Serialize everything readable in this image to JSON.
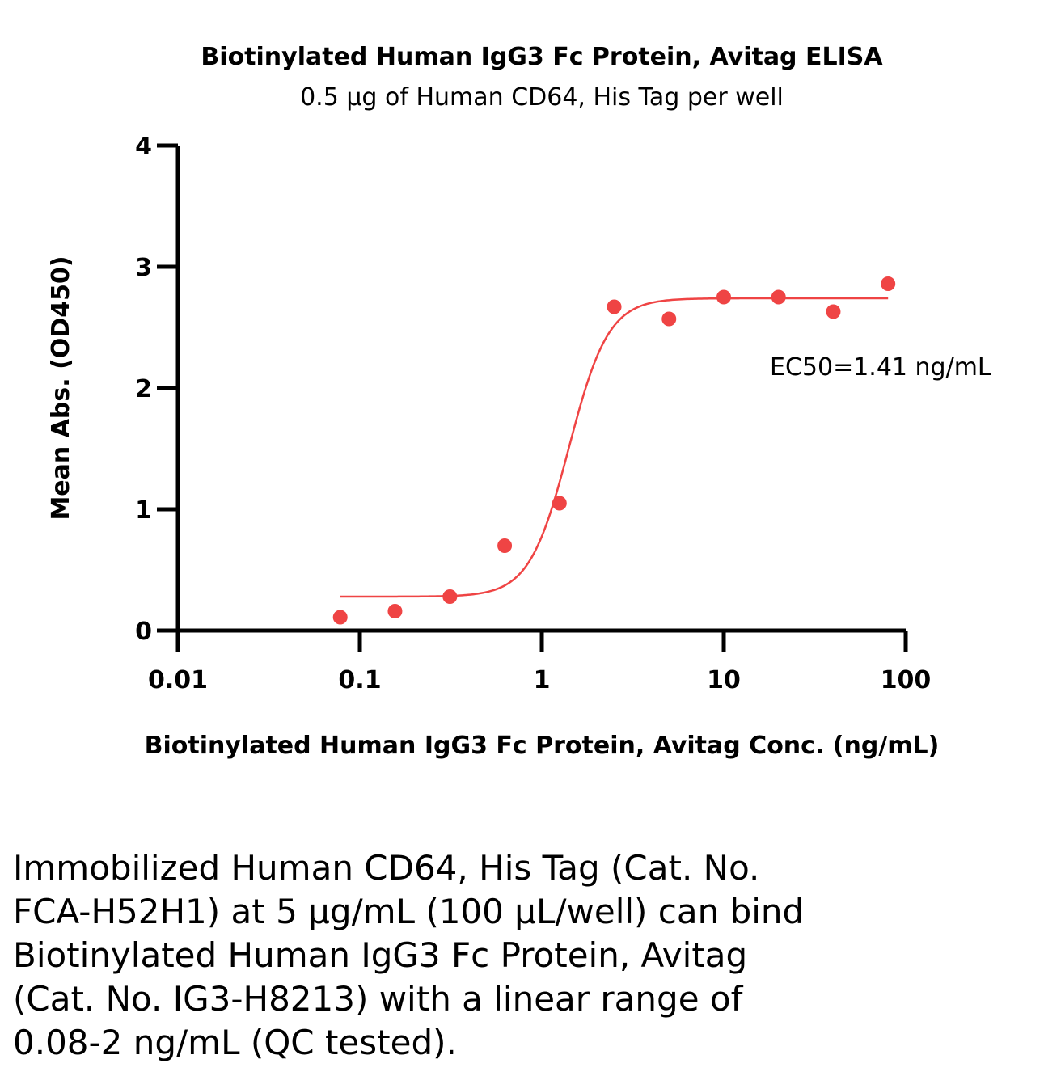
{
  "chart_data": {
    "type": "scatter",
    "title": "Biotinylated Human IgG3 Fc Protein, Avitag ELISA",
    "subtitle": "0.5 μg of Human CD64, His Tag per well",
    "xlabel": "Biotinylated Human IgG3 Fc Protein, Avitag Conc. (ng/mL)",
    "ylabel": "Mean Abs. (OD450)",
    "x_scale": "log",
    "xlim": [
      0.01,
      100
    ],
    "ylim": [
      0,
      4
    ],
    "x_ticks": [
      0.01,
      0.1,
      1,
      10,
      100
    ],
    "x_tick_labels": [
      "0.01",
      "0.1",
      "1",
      "10",
      "100"
    ],
    "y_ticks": [
      0,
      1,
      2,
      3,
      4
    ],
    "y_tick_labels": [
      "0",
      "1",
      "2",
      "3",
      "4"
    ],
    "grid": false,
    "color": "#ef4444",
    "series": [
      {
        "x": [
          0.078,
          0.156,
          0.3125,
          0.625,
          1.25,
          2.5,
          5,
          10,
          20,
          40,
          80
        ],
        "y": [
          0.11,
          0.16,
          0.28,
          0.7,
          1.05,
          2.67,
          2.57,
          2.75,
          2.75,
          2.63,
          2.86
        ]
      }
    ],
    "fit": {
      "model": "4PL",
      "bottom": 0.28,
      "top": 2.74,
      "ec50": 1.41,
      "hill": 4.0,
      "x_range": [
        0.078,
        80
      ]
    },
    "annotation": "EC50=1.41 ng/mL"
  },
  "caption_lines": [
    "Immobilized Human CD64, His Tag (Cat. No.",
    "FCA-H52H1) at 5 μg/mL (100 μL/well) can bind",
    "Biotinylated Human IgG3 Fc Protein, Avitag",
    "(Cat. No. IG3-H8213) with a linear range of",
    "0.08-2 ng/mL (QC tested)."
  ]
}
